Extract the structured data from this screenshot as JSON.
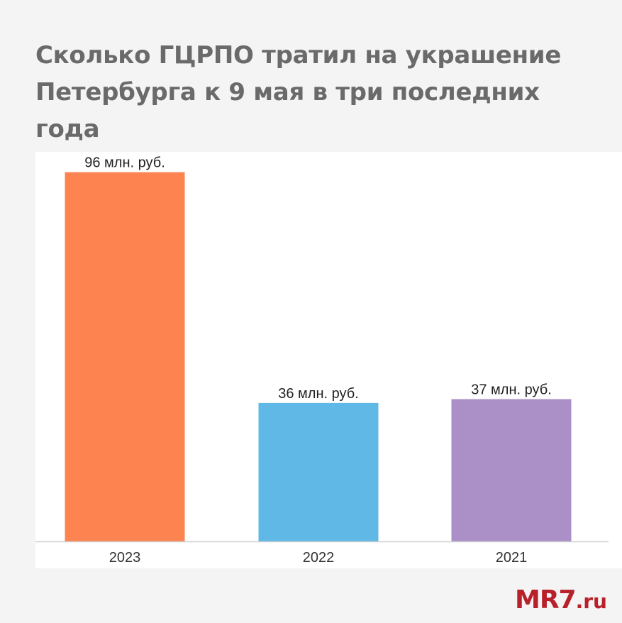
{
  "title": "Сколько ГЦРПО тратил на украшение Петербурга к 9 мая в три последних года",
  "chart_data": {
    "type": "bar",
    "categories": [
      "2023",
      "2022",
      "2021"
    ],
    "values": [
      96,
      36,
      37
    ],
    "value_labels": [
      "96 млн. руб.",
      "36 млн. руб.",
      "37 млн. руб."
    ],
    "colors": [
      "#fd8451",
      "#5fb8e5",
      "#aa90c6"
    ],
    "ylim": [
      0,
      100
    ],
    "grid": false,
    "legend": "none"
  },
  "logo": {
    "main": "MR7",
    "tld": ".ru"
  }
}
